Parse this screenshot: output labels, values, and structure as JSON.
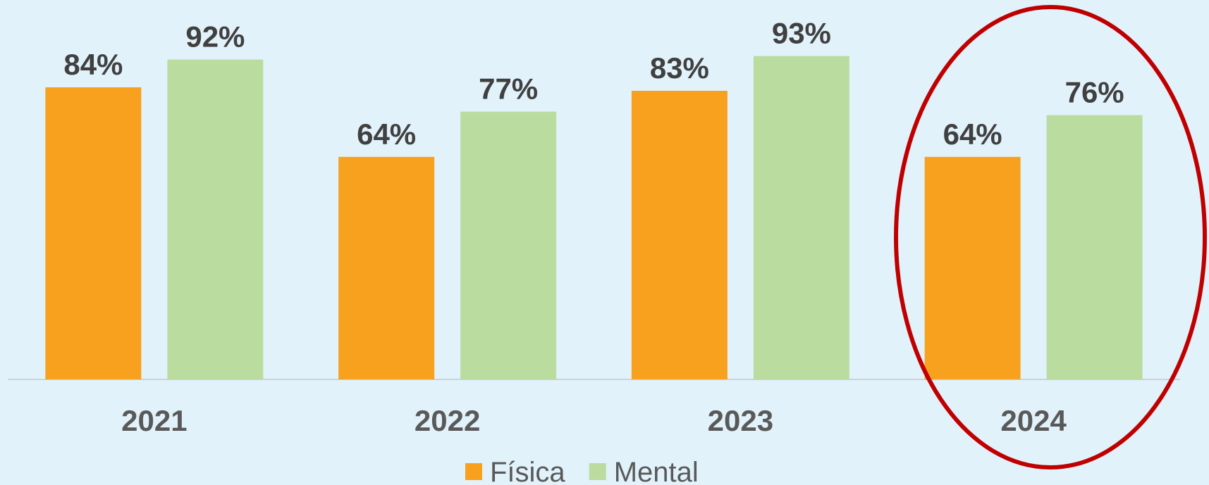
{
  "chart_data": {
    "type": "bar",
    "categories": [
      "2021",
      "2022",
      "2023",
      "2024"
    ],
    "series": [
      {
        "name": "Física",
        "color": "#f7a11f",
        "values": [
          84,
          64,
          83,
          64
        ],
        "value_labels": [
          "84%",
          "64%",
          "83%",
          "64%"
        ]
      },
      {
        "name": "Mental",
        "color": "#badd9f",
        "values": [
          92,
          77,
          93,
          76
        ],
        "value_labels": [
          "92%",
          "77%",
          "93%",
          "76%"
        ]
      }
    ],
    "ylim": [
      0,
      100
    ]
  }
}
